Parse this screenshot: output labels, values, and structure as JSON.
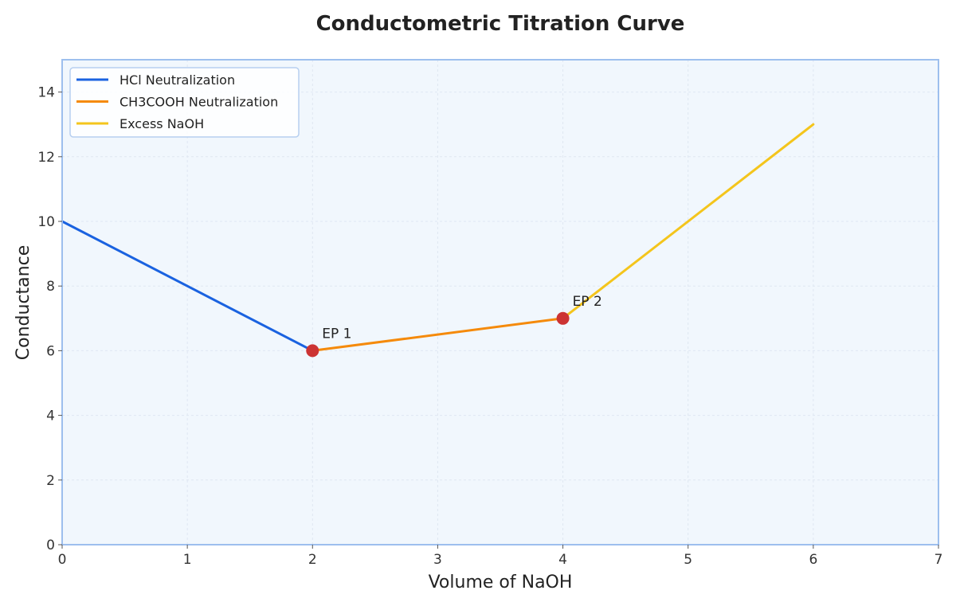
{
  "chart_data": {
    "type": "line",
    "title": "Conductometric Titration Curve",
    "xlabel": "Volume of NaOH",
    "ylabel": "Conductance",
    "xlim": [
      0,
      7
    ],
    "ylim": [
      0,
      15
    ],
    "x_ticks": [
      0,
      1,
      2,
      3,
      4,
      5,
      6,
      7
    ],
    "y_ticks": [
      0,
      2,
      4,
      6,
      8,
      10,
      12,
      14
    ],
    "grid": true,
    "legend_position": "top-left",
    "series": [
      {
        "name": "HCl Neutralization",
        "color": "#1a62e0",
        "x": [
          0,
          2
        ],
        "y": [
          10,
          6
        ]
      },
      {
        "name": "CH3COOH Neutralization",
        "color": "#f58a0b",
        "x": [
          2,
          4
        ],
        "y": [
          6,
          7
        ]
      },
      {
        "name": "Excess NaOH",
        "color": "#f4c51c",
        "x": [
          4,
          6
        ],
        "y": [
          7,
          13
        ]
      }
    ],
    "points": [
      {
        "label": "EP 1",
        "x": 2,
        "y": 6,
        "color": "#cc3333"
      },
      {
        "label": "EP 2",
        "x": 4,
        "y": 7,
        "color": "#cc3333"
      }
    ],
    "colors": {
      "plot_background": "#f1f7fd",
      "frame": "#9dbfee",
      "grid": "#dfe7f2"
    }
  }
}
